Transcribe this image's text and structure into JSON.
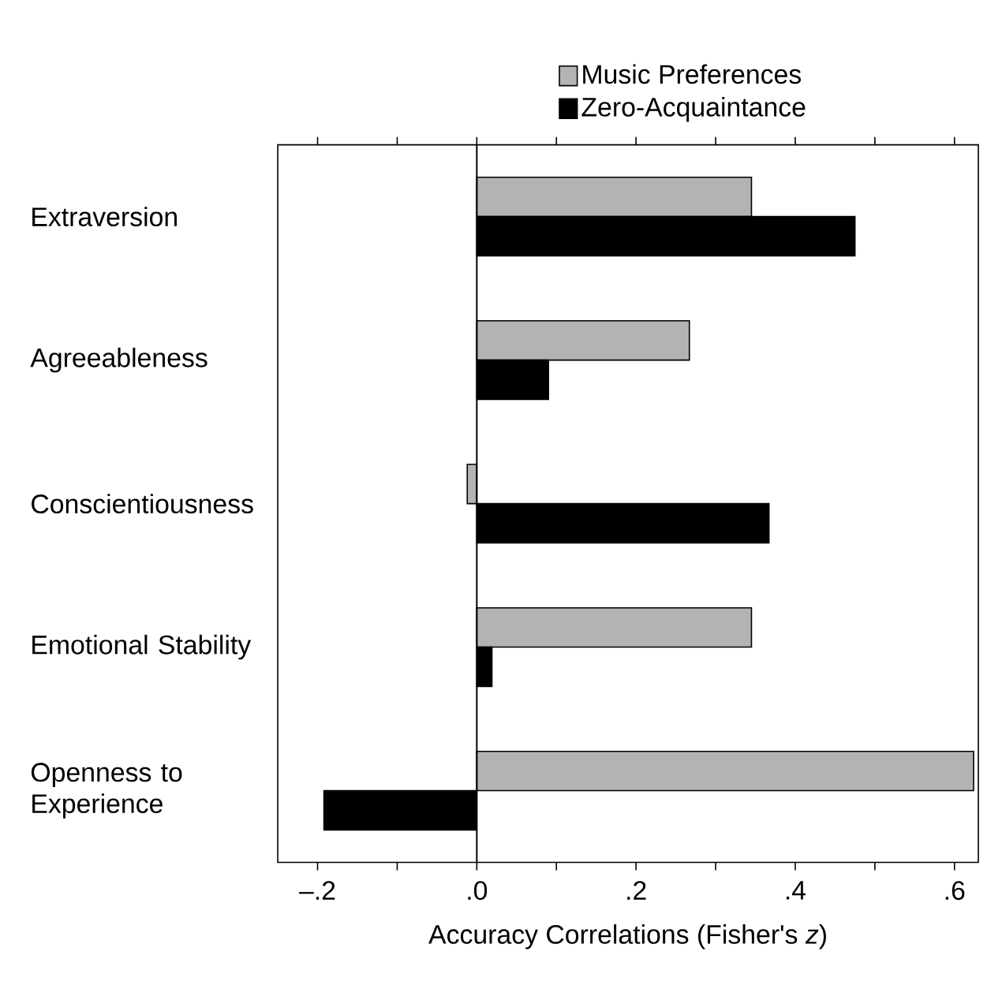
{
  "chart_data": {
    "type": "bar",
    "orientation": "horizontal",
    "xlabel": "Accuracy Correlations (Fisher's *z*)",
    "categories": [
      "Extraversion",
      "Agreeableness",
      "Conscientiousness",
      "Emotional Stability",
      "Openness to Experience"
    ],
    "series": [
      {
        "name": "Music Preferences",
        "color": "#b3b3b3",
        "values": [
          0.345,
          0.267,
          -0.012,
          0.345,
          0.624
        ]
      },
      {
        "name": "Zero-Acquaintance",
        "color": "#000000",
        "values": [
          0.475,
          0.09,
          0.367,
          0.019,
          -0.192
        ]
      }
    ],
    "xlim": [
      -0.25,
      0.63
    ],
    "xticks": [
      {
        "value": -0.2,
        "label": "–.2"
      },
      {
        "value": -0.1,
        "label": null
      },
      {
        "value": 0,
        "label": ".0"
      },
      {
        "value": 0.1,
        "label": null
      },
      {
        "value": 0.2,
        "label": ".2"
      },
      {
        "value": 0.3,
        "label": null
      },
      {
        "value": 0.4,
        "label": ".4"
      },
      {
        "value": 0.5,
        "label": null
      },
      {
        "value": 0.6,
        "label": ".6"
      }
    ],
    "ref_lines": [
      {
        "axis": "x",
        "value": 0,
        "color": "#000000"
      }
    ],
    "grid": false,
    "legend": "top"
  }
}
